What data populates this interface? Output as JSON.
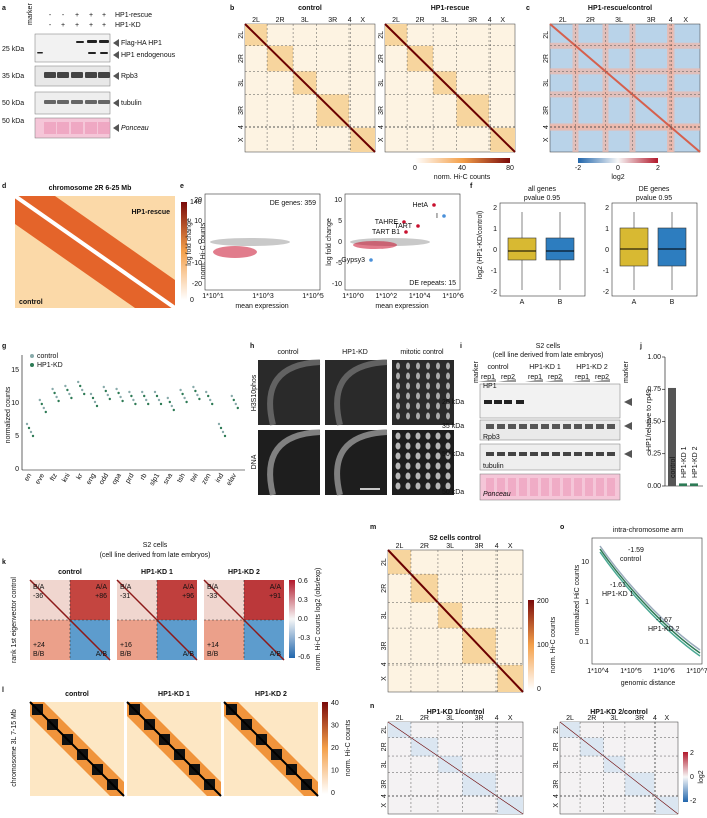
{
  "panels": {
    "a": {
      "label": "a",
      "marker": "marker",
      "rows": [
        "HP1-rescue",
        "HP1-KD"
      ],
      "signs": [
        [
          "-",
          "-",
          "+",
          "+",
          "+"
        ],
        [
          "-",
          "+",
          "+",
          "+",
          "+"
        ]
      ],
      "bands": [
        "Flag-HA HP1",
        "HP1 endogenous",
        "Rpb3",
        "tubulin",
        "Ponceau"
      ],
      "mw": [
        "25 kDa",
        "35 kDa",
        "50 kDa",
        "50 kDa"
      ]
    },
    "b": {
      "label": "b",
      "titles": [
        "control",
        "HP1-rescue"
      ],
      "chromosomes": [
        "2L",
        "2R",
        "3L",
        "3R",
        "4",
        "X"
      ],
      "colorbar_ticks": [
        "0",
        "40",
        "80"
      ],
      "colorbar_label": "norm. Hi-C counts"
    },
    "c": {
      "label": "c",
      "title": "HP1-rescue/control",
      "colorbar_ticks": [
        "-2",
        "0",
        "2"
      ],
      "colorbar_label": "log2"
    },
    "d": {
      "label": "d",
      "title": "chromosome 2R 6-25 Mb",
      "upper": "HP1-rescue",
      "lower": "control",
      "colorbar_ticks": [
        "140",
        "0"
      ],
      "colorbar_label": "norm. Hi-C counts"
    },
    "e": {
      "label": "e",
      "ylabel": "log fold change",
      "xlabel": "mean expression",
      "genes_note": "DE genes: 359",
      "genes_yticks": [
        "20",
        "10",
        "0",
        "-10",
        "-20"
      ],
      "genes_xticks": [
        "1*10^1",
        "1*10^3",
        "1*10^5"
      ],
      "repeats_note": "DE repeats: 15",
      "repeats_yticks": [
        "10",
        "5",
        "0",
        "-5",
        "-10"
      ],
      "repeats_xticks": [
        "1*10^0",
        "1*10^2",
        "1*10^4",
        "1*10^6"
      ],
      "repeat_names": [
        "HetA",
        "TAHRE",
        "TART",
        "TART B1",
        "Gypsy3",
        "I"
      ]
    },
    "f": {
      "label": "f",
      "titles": [
        "all genes",
        "DE genes"
      ],
      "pvalue": "pvalue 0.95",
      "ylabel": "log2 (HP1-KD/control)",
      "groups": [
        "A",
        "B"
      ],
      "yticks": [
        "2",
        "1",
        "0",
        "-1",
        "-2"
      ]
    },
    "g": {
      "label": "g",
      "ylabel": "normalized counts",
      "legend": [
        "control",
        "HP1-KD"
      ],
      "yticks": [
        "15",
        "10",
        "5",
        "0"
      ],
      "genes": [
        "en",
        "eve",
        "ftz",
        "kni",
        "kr",
        "eng",
        "odd",
        "opa",
        "prd",
        "rb",
        "slp1",
        "sna",
        "tsh",
        "twi",
        "zen",
        "ind",
        "elav"
      ]
    },
    "h": {
      "label": "h",
      "columns": [
        "control",
        "HP1-KD",
        "mitotic control"
      ],
      "rows": [
        "H3S10phos",
        "DNA"
      ]
    },
    "i": {
      "label": "i",
      "title": "S2 cells",
      "subtitle": "(cell line derived from late embryos)",
      "marker": "marker",
      "groups": [
        "control",
        "HP1-KD 1",
        "HP1-KD 2"
      ],
      "reps": [
        "rep1",
        "rep2"
      ],
      "bands": [
        "HP1",
        "Rpb3",
        "tubulin",
        "Ponceau"
      ],
      "mw": [
        "25 kDa",
        "35 kDa",
        "50 kDa",
        "50 kDa"
      ]
    },
    "j": {
      "label": "j",
      "type": "bar",
      "ylabel": "HP1/relative to rp49",
      "categories": [
        "control",
        "HP1-KD 1",
        "HP1-KD 2"
      ],
      "values": [
        0.76,
        0.02,
        0.02
      ],
      "color": "#555555",
      "ylim": [
        0,
        1.0
      ],
      "yticks": [
        {
          "value": 0,
          "label": "0.00"
        },
        {
          "value": 0.25,
          "label": "0.25"
        },
        {
          "value": 0.5,
          "label": "0.50"
        },
        {
          "value": 0.75,
          "label": "0.75"
        },
        {
          "value": 1.0,
          "label": "1.00"
        }
      ]
    },
    "k": {
      "label": "k",
      "title": "S2 cells",
      "subtitle": "(cell line derived from late embryos)",
      "titles": [
        "control",
        "HP1-KD 1",
        "HP1-KD 2"
      ],
      "quadrants": [
        [
          "B/A",
          "-36",
          "A/A",
          "+86",
          "+24",
          "B/B",
          "A/B"
        ],
        [
          "B/A",
          "-31",
          "A/A",
          "+96",
          "+16",
          "B/B",
          "A/B"
        ],
        [
          "B/A",
          "-33",
          "A/A",
          "+91",
          "+14",
          "B/B",
          "A/B"
        ]
      ],
      "ylabel": "rank 1st eigenvector control",
      "colorbar_ticks": [
        "0.6",
        "0.3",
        "0.0",
        "-0.3",
        "-0.6"
      ],
      "colorbar_label": "norm. Hi-C counts log2 (obs/exp)"
    },
    "l": {
      "label": "l",
      "titles": [
        "control",
        "HP1-KD 1",
        "HP1-KD 2"
      ],
      "ylabel": "chromosome 3L 7-15 Mb",
      "colorbar_ticks": [
        "40",
        "30",
        "20",
        "10",
        "0"
      ],
      "colorbar_label": "norm. Hi-C counts"
    },
    "m": {
      "label": "m",
      "title": "S2 cells control",
      "colorbar_ticks": [
        "200",
        "100",
        "0"
      ],
      "colorbar_label": "norm. Hi-C counts"
    },
    "n": {
      "label": "n",
      "titles": [
        "HP1-KD 1/control",
        "HP1-KD 2/control"
      ],
      "colorbar_ticks": [
        "2",
        "0",
        "-2"
      ],
      "colorbar_label": "log2"
    },
    "o": {
      "label": "o",
      "title": "intra-chromosome arm",
      "ylabel": "normalized HiC counts",
      "xlabel": "genomic distance",
      "yticks": [
        "10",
        "1",
        "0.1"
      ],
      "xticks": [
        "1*10^4",
        "1*10^5",
        "1*10^6",
        "1*10^7"
      ],
      "slopes": [
        [
          "-1.59",
          "control"
        ],
        [
          "-1.61",
          "HP1-KD 1"
        ],
        [
          "-1.67",
          "HP1-KD 2"
        ]
      ]
    }
  }
}
